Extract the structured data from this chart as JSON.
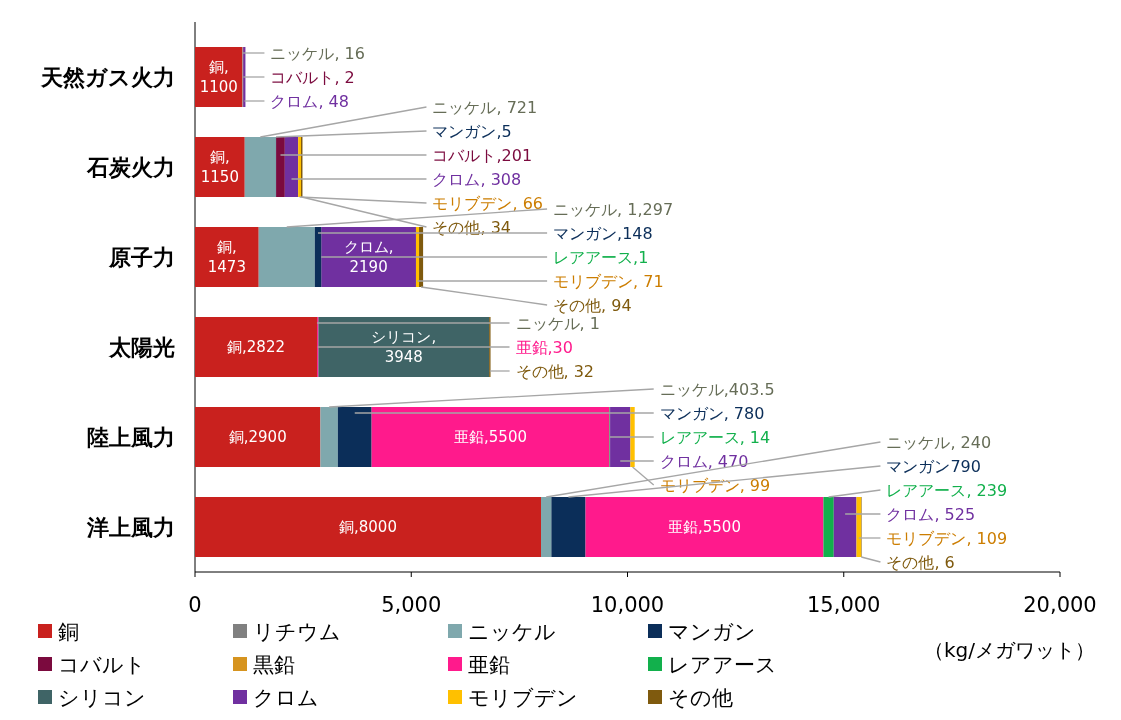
{
  "chart_data": {
    "type": "bar",
    "orientation": "horizontal",
    "stacked": true,
    "categories": [
      "天然ガス火力",
      "石炭火力",
      "原子力",
      "太陽光",
      "陸上風力",
      "洋上風力"
    ],
    "xlim": [
      0,
      20000
    ],
    "xticks": [
      0,
      {
        "value": 5000,
        "label": "5,000"
      },
      {
        "value": 10000,
        "label": "10,000"
      },
      {
        "value": 15000,
        "label": "15,000"
      },
      {
        "value": 20000,
        "label": "20,000"
      }
    ],
    "xlabel": "（kg/メガワット）",
    "legend": "bottom",
    "series": [
      {
        "name": "銅",
        "color": "#c9211e",
        "values": [
          1100,
          1150,
          1473,
          2822,
          2900,
          8000
        ],
        "value_labels": [
          "銅,\n1100",
          "銅,\n1150",
          "銅,\n1473",
          "銅,2822",
          "銅,2900",
          "銅,8000"
        ]
      },
      {
        "name": "リチウム",
        "color": "#808080",
        "values": [
          null,
          null,
          null,
          null,
          null,
          null
        ],
        "value_labels": [
          null,
          null,
          null,
          null,
          null,
          null
        ]
      },
      {
        "name": "ニッケル",
        "color": "#7fa8ad",
        "values": [
          16,
          721,
          1297,
          1,
          403.5,
          240
        ],
        "value_labels": [
          "ニッケル, 16",
          "ニッケル, 721",
          "ニッケル, 1,297",
          "ニッケル, 1",
          "ニッケル,403.5",
          "ニッケル, 240"
        ]
      },
      {
        "name": "マンガン",
        "color": "#0b2e59",
        "values": [
          null,
          5,
          148,
          null,
          780,
          790
        ],
        "value_labels": [
          null,
          "マンガン,5",
          "マンガン,148",
          null,
          "マンガン, 780",
          "マンガン790"
        ]
      },
      {
        "name": "コバルト",
        "color": "#7b0a3e",
        "values": [
          2,
          201,
          null,
          null,
          null,
          null
        ],
        "value_labels": [
          "コバルト, 2",
          "コバルト,201",
          null,
          null,
          null,
          null
        ]
      },
      {
        "name": "黒鉛",
        "color": "#d6941f",
        "values": [
          null,
          null,
          null,
          null,
          null,
          null
        ],
        "value_labels": [
          null,
          null,
          null,
          null,
          null,
          null
        ]
      },
      {
        "name": "亜鉛",
        "color": "#ff1a8c",
        "values": [
          null,
          null,
          null,
          30,
          5500,
          5500
        ],
        "value_labels": [
          null,
          null,
          null,
          "亜鉛,30",
          "亜鉛,5500",
          "亜鉛,5500"
        ]
      },
      {
        "name": "レアアース",
        "color": "#12b04c",
        "values": [
          null,
          null,
          1,
          null,
          14,
          239
        ],
        "value_labels": [
          null,
          null,
          "レアアース,1",
          null,
          "レアアース, 14",
          "レアアース, 239"
        ]
      },
      {
        "name": "シリコン",
        "color": "#3f6466",
        "values": [
          null,
          null,
          null,
          3948,
          null,
          null
        ],
        "value_labels": [
          null,
          null,
          null,
          "シリコン,\n3948",
          null,
          null
        ]
      },
      {
        "name": "クロム",
        "color": "#7030a0",
        "values": [
          48,
          308,
          2190,
          null,
          470,
          525
        ],
        "value_labels": [
          "クロム, 48",
          "クロム, 308",
          "クロム,\n2190",
          null,
          "クロム, 470",
          "クロム, 525"
        ]
      },
      {
        "name": "モリブデン",
        "color": "#ffc000",
        "values": [
          null,
          66,
          71,
          null,
          99,
          109
        ],
        "value_labels": [
          null,
          "モリブデン, 66",
          "モリブデン, 71",
          null,
          "モリブデン, 99",
          "モリブデン, 109"
        ]
      },
      {
        "name": "その他",
        "color": "#7f5a0e",
        "values": [
          null,
          34,
          94,
          32,
          null,
          6
        ],
        "value_labels": [
          null,
          "その他, 34",
          "その他, 94",
          "その他, 32",
          null,
          "その他, 6"
        ]
      }
    ]
  }
}
